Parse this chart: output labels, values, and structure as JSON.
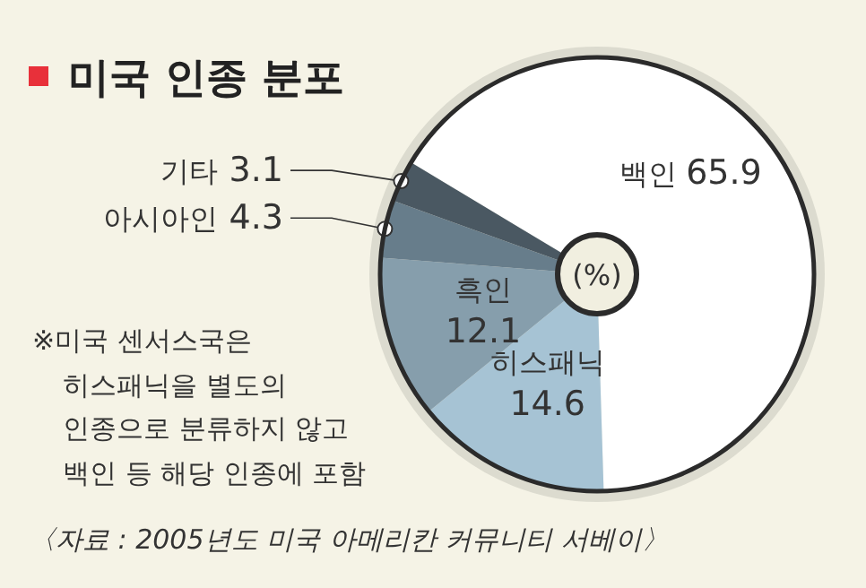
{
  "chart_data": {
    "type": "donut",
    "title": "미국 인종 분포",
    "categories": [
      "백인",
      "히스패닉",
      "흑인",
      "아시아인",
      "기타"
    ],
    "values": [
      65.9,
      14.6,
      12.1,
      4.3,
      3.1
    ],
    "colors": [
      "#ffffff",
      "#a6c3d4",
      "#869eac",
      "#677d8b",
      "#4a5862"
    ],
    "data_labels": true,
    "annotations": [
      "(%)",
      "※미국 센서스국은\n히스패닉을 별도의\n인종으로 분류하지 않고\n백인 등 해당 인종에 포함",
      "〈자료 : 2005년도 미국 아메리칸 커뮤니티 서베이〉"
    ]
  }
}
